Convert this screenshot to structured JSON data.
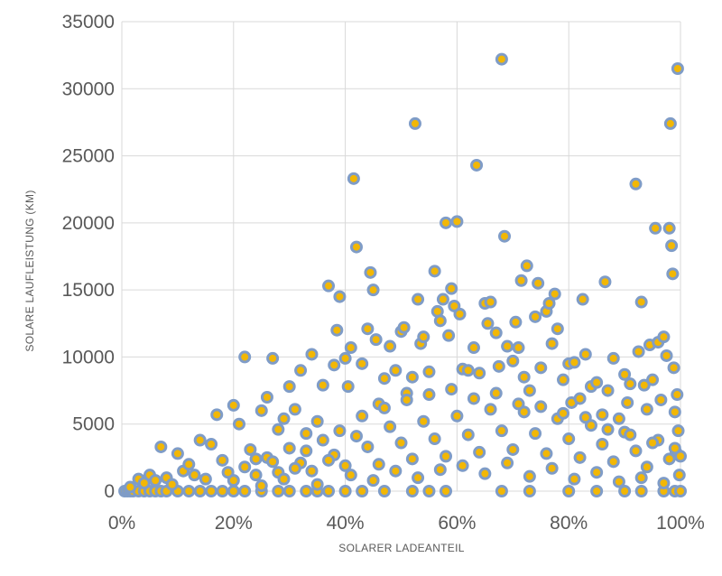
{
  "chart_data": {
    "type": "scatter",
    "title": "",
    "xlabel": "SOLARER LADEANTEIL",
    "ylabel": "SOLARE LAUFLEISTUNG (KM)",
    "xlim": [
      0,
      1
    ],
    "ylim": [
      0,
      35000
    ],
    "x_ticks": [
      "0%",
      "20%",
      "40%",
      "60%",
      "80%",
      "100%"
    ],
    "y_ticks": [
      "0",
      "5000",
      "10000",
      "15000",
      "20000",
      "25000",
      "30000",
      "35000"
    ],
    "grid": true,
    "legend": "none",
    "marker": {
      "fill": "#F2B705",
      "stroke": "#7F9CC7"
    },
    "points": [
      [
        0.005,
        0
      ],
      [
        0.01,
        0
      ],
      [
        0.015,
        0
      ],
      [
        0.02,
        0
      ],
      [
        0.03,
        0
      ],
      [
        0.04,
        0
      ],
      [
        0.05,
        0
      ],
      [
        0.06,
        0
      ],
      [
        0.07,
        0
      ],
      [
        0.08,
        0
      ],
      [
        0.1,
        0
      ],
      [
        0.12,
        0
      ],
      [
        0.14,
        0
      ],
      [
        0.16,
        0
      ],
      [
        0.18,
        0
      ],
      [
        0.2,
        0
      ],
      [
        0.22,
        0
      ],
      [
        0.25,
        0
      ],
      [
        0.28,
        0
      ],
      [
        0.3,
        0
      ],
      [
        0.33,
        0
      ],
      [
        0.35,
        0
      ],
      [
        0.37,
        0
      ],
      [
        0.4,
        0
      ],
      [
        0.43,
        0
      ],
      [
        0.47,
        0
      ],
      [
        0.52,
        0
      ],
      [
        0.55,
        0
      ],
      [
        0.58,
        0
      ],
      [
        0.68,
        0
      ],
      [
        0.73,
        0
      ],
      [
        0.8,
        0
      ],
      [
        0.85,
        0
      ],
      [
        0.9,
        0
      ],
      [
        0.93,
        0
      ],
      [
        0.97,
        0
      ],
      [
        0.99,
        0
      ],
      [
        1.0,
        0
      ],
      [
        0.015,
        300
      ],
      [
        0.03,
        900
      ],
      [
        0.04,
        600
      ],
      [
        0.05,
        1200
      ],
      [
        0.06,
        800
      ],
      [
        0.07,
        3300
      ],
      [
        0.08,
        1000
      ],
      [
        0.09,
        500
      ],
      [
        0.1,
        2800
      ],
      [
        0.11,
        1500
      ],
      [
        0.12,
        2000
      ],
      [
        0.13,
        1200
      ],
      [
        0.14,
        3800
      ],
      [
        0.15,
        900
      ],
      [
        0.16,
        3500
      ],
      [
        0.17,
        5700
      ],
      [
        0.18,
        2300
      ],
      [
        0.19,
        1400
      ],
      [
        0.2,
        6400
      ],
      [
        0.21,
        5000
      ],
      [
        0.22,
        10000
      ],
      [
        0.23,
        3100
      ],
      [
        0.24,
        2400
      ],
      [
        0.25,
        6000
      ],
      [
        0.26,
        7000
      ],
      [
        0.27,
        9900
      ],
      [
        0.28,
        4600
      ],
      [
        0.29,
        5400
      ],
      [
        0.3,
        7800
      ],
      [
        0.31,
        6100
      ],
      [
        0.32,
        9000
      ],
      [
        0.33,
        4300
      ],
      [
        0.34,
        10200
      ],
      [
        0.35,
        5200
      ],
      [
        0.36,
        7900
      ],
      [
        0.37,
        15300
      ],
      [
        0.38,
        9400
      ],
      [
        0.385,
        12000
      ],
      [
        0.39,
        14500
      ],
      [
        0.4,
        9900
      ],
      [
        0.405,
        7800
      ],
      [
        0.41,
        10700
      ],
      [
        0.415,
        23300
      ],
      [
        0.42,
        18200
      ],
      [
        0.43,
        9500
      ],
      [
        0.44,
        12100
      ],
      [
        0.445,
        16300
      ],
      [
        0.45,
        15000
      ],
      [
        0.455,
        11300
      ],
      [
        0.46,
        6500
      ],
      [
        0.47,
        8400
      ],
      [
        0.48,
        10800
      ],
      [
        0.49,
        9000
      ],
      [
        0.5,
        11900
      ],
      [
        0.505,
        12200
      ],
      [
        0.51,
        7300
      ],
      [
        0.52,
        8500
      ],
      [
        0.525,
        27400
      ],
      [
        0.53,
        14300
      ],
      [
        0.535,
        11000
      ],
      [
        0.54,
        11500
      ],
      [
        0.55,
        8900
      ],
      [
        0.56,
        16400
      ],
      [
        0.565,
        13400
      ],
      [
        0.57,
        12700
      ],
      [
        0.575,
        14300
      ],
      [
        0.58,
        20000
      ],
      [
        0.585,
        11600
      ],
      [
        0.59,
        15100
      ],
      [
        0.595,
        13800
      ],
      [
        0.6,
        20100
      ],
      [
        0.605,
        13200
      ],
      [
        0.61,
        9100
      ],
      [
        0.62,
        9000
      ],
      [
        0.63,
        10700
      ],
      [
        0.635,
        24300
      ],
      [
        0.64,
        8800
      ],
      [
        0.65,
        14000
      ],
      [
        0.655,
        12500
      ],
      [
        0.66,
        14100
      ],
      [
        0.67,
        11800
      ],
      [
        0.675,
        9300
      ],
      [
        0.68,
        32200
      ],
      [
        0.685,
        19000
      ],
      [
        0.69,
        10800
      ],
      [
        0.7,
        9700
      ],
      [
        0.705,
        12600
      ],
      [
        0.71,
        10700
      ],
      [
        0.715,
        15700
      ],
      [
        0.72,
        8500
      ],
      [
        0.725,
        16800
      ],
      [
        0.73,
        7500
      ],
      [
        0.74,
        13000
      ],
      [
        0.745,
        15500
      ],
      [
        0.75,
        9200
      ],
      [
        0.76,
        13400
      ],
      [
        0.765,
        14000
      ],
      [
        0.77,
        11000
      ],
      [
        0.775,
        14700
      ],
      [
        0.78,
        12100
      ],
      [
        0.79,
        8300
      ],
      [
        0.8,
        9500
      ],
      [
        0.805,
        6600
      ],
      [
        0.81,
        9600
      ],
      [
        0.82,
        6900
      ],
      [
        0.825,
        14300
      ],
      [
        0.83,
        10200
      ],
      [
        0.84,
        7800
      ],
      [
        0.85,
        8100
      ],
      [
        0.86,
        5700
      ],
      [
        0.865,
        15600
      ],
      [
        0.87,
        7500
      ],
      [
        0.88,
        9900
      ],
      [
        0.89,
        5400
      ],
      [
        0.9,
        8700
      ],
      [
        0.905,
        6600
      ],
      [
        0.91,
        8000
      ],
      [
        0.92,
        22900
      ],
      [
        0.925,
        10400
      ],
      [
        0.93,
        14100
      ],
      [
        0.935,
        7900
      ],
      [
        0.94,
        6100
      ],
      [
        0.945,
        10900
      ],
      [
        0.95,
        8300
      ],
      [
        0.955,
        19600
      ],
      [
        0.96,
        11100
      ],
      [
        0.965,
        6800
      ],
      [
        0.97,
        11500
      ],
      [
        0.975,
        10100
      ],
      [
        0.98,
        19600
      ],
      [
        0.982,
        27400
      ],
      [
        0.984,
        18300
      ],
      [
        0.986,
        16200
      ],
      [
        0.988,
        9200
      ],
      [
        0.99,
        5900
      ],
      [
        0.992,
        2900
      ],
      [
        0.994,
        7200
      ],
      [
        0.995,
        31500
      ],
      [
        0.996,
        4500
      ],
      [
        0.998,
        1200
      ],
      [
        1.0,
        2600
      ],
      [
        0.2,
        800
      ],
      [
        0.22,
        1800
      ],
      [
        0.24,
        1200
      ],
      [
        0.26,
        2500
      ],
      [
        0.28,
        1400
      ],
      [
        0.3,
        3200
      ],
      [
        0.32,
        2100
      ],
      [
        0.34,
        1500
      ],
      [
        0.36,
        3800
      ],
      [
        0.38,
        2700
      ],
      [
        0.4,
        1900
      ],
      [
        0.42,
        4100
      ],
      [
        0.44,
        3300
      ],
      [
        0.46,
        2000
      ],
      [
        0.48,
        4800
      ],
      [
        0.5,
        3600
      ],
      [
        0.52,
        2400
      ],
      [
        0.54,
        5200
      ],
      [
        0.56,
        3900
      ],
      [
        0.58,
        2600
      ],
      [
        0.6,
        5600
      ],
      [
        0.62,
        4200
      ],
      [
        0.64,
        2900
      ],
      [
        0.66,
        6100
      ],
      [
        0.68,
        4500
      ],
      [
        0.7,
        3100
      ],
      [
        0.72,
        5900
      ],
      [
        0.74,
        4300
      ],
      [
        0.76,
        2800
      ],
      [
        0.78,
        5400
      ],
      [
        0.8,
        3900
      ],
      [
        0.82,
        2500
      ],
      [
        0.84,
        4900
      ],
      [
        0.86,
        3500
      ],
      [
        0.88,
        2200
      ],
      [
        0.9,
        4400
      ],
      [
        0.92,
        3000
      ],
      [
        0.94,
        1800
      ],
      [
        0.96,
        3800
      ],
      [
        0.98,
        2400
      ],
      [
        0.25,
        400
      ],
      [
        0.27,
        2200
      ],
      [
        0.29,
        900
      ],
      [
        0.31,
        1700
      ],
      [
        0.33,
        3000
      ],
      [
        0.35,
        500
      ],
      [
        0.37,
        2300
      ],
      [
        0.39,
        4500
      ],
      [
        0.41,
        1200
      ],
      [
        0.43,
        5600
      ],
      [
        0.45,
        800
      ],
      [
        0.47,
        6200
      ],
      [
        0.49,
        1500
      ],
      [
        0.51,
        6800
      ],
      [
        0.53,
        1000
      ],
      [
        0.55,
        7200
      ],
      [
        0.57,
        1600
      ],
      [
        0.59,
        7600
      ],
      [
        0.61,
        1900
      ],
      [
        0.63,
        6900
      ],
      [
        0.65,
        1300
      ],
      [
        0.67,
        7300
      ],
      [
        0.69,
        2100
      ],
      [
        0.71,
        6500
      ],
      [
        0.73,
        1100
      ],
      [
        0.75,
        6300
      ],
      [
        0.77,
        1700
      ],
      [
        0.79,
        5800
      ],
      [
        0.81,
        900
      ],
      [
        0.83,
        5500
      ],
      [
        0.85,
        1400
      ],
      [
        0.87,
        4600
      ],
      [
        0.89,
        700
      ],
      [
        0.91,
        4200
      ],
      [
        0.93,
        1000
      ],
      [
        0.95,
        3600
      ],
      [
        0.97,
        600
      ],
      [
        0.99,
        3200
      ]
    ]
  }
}
